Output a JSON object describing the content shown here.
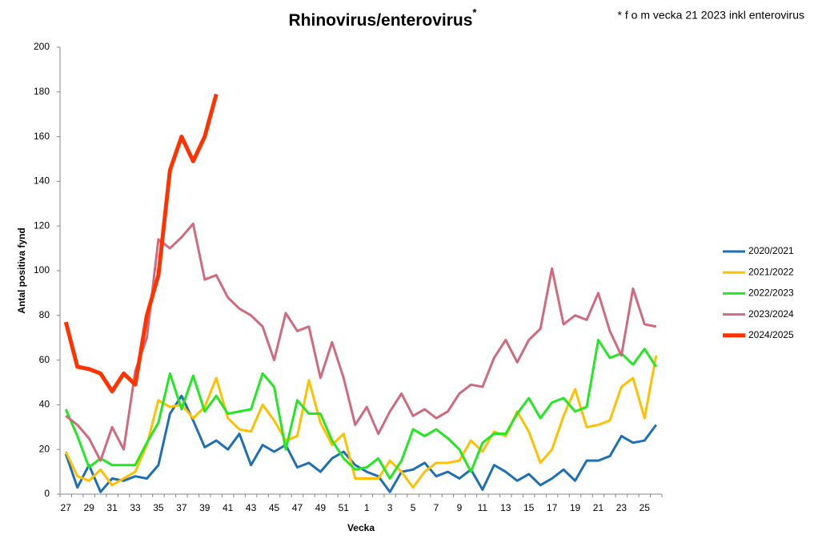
{
  "chart_data": {
    "type": "line",
    "title": "Rhinovirus/enterovirus",
    "title_superscript": "*",
    "annotation": "* f o m vecka 21 2023 inkl enterovirus",
    "x_label": "Vecka",
    "y_label": "Antal positiva fynd",
    "categories": [
      "27",
      null,
      "29",
      null,
      "31",
      null,
      "33",
      null,
      "35",
      null,
      "37",
      null,
      "39",
      null,
      "41",
      null,
      "43",
      null,
      "45",
      null,
      "47",
      null,
      "49",
      null,
      "51",
      null,
      "1",
      null,
      "3",
      null,
      "5",
      null,
      "7",
      null,
      "9",
      null,
      "11",
      null,
      "13",
      null,
      "15",
      null,
      "17",
      null,
      "19",
      null,
      "21",
      null,
      "23",
      null,
      "25",
      null
    ],
    "ylim": [
      0,
      200
    ],
    "yticks": [
      0,
      20,
      40,
      60,
      80,
      100,
      120,
      140,
      160,
      180,
      200
    ],
    "grid": false,
    "legend": "right",
    "series": [
      {
        "name": "2020/2021",
        "color": "#1f6fb4",
        "values": [
          18,
          3,
          13,
          1,
          7,
          6,
          8,
          7,
          13,
          36,
          44,
          33,
          21,
          24,
          20,
          27,
          13,
          22,
          19,
          22,
          12,
          14,
          10,
          16,
          19,
          13,
          10,
          8,
          1,
          10,
          11,
          14,
          8,
          10,
          7,
          11,
          2,
          13,
          10,
          6,
          9,
          4,
          7,
          11,
          6,
          15,
          15,
          17,
          26,
          23,
          24,
          31
        ]
      },
      {
        "name": "2021/2022",
        "color": "#ffc000",
        "values": [
          19,
          8,
          6,
          11,
          4,
          7,
          10,
          22,
          42,
          39,
          40,
          34,
          39,
          52,
          34,
          29,
          28,
          40,
          33,
          24,
          26,
          51,
          32,
          22,
          27,
          7,
          7,
          7,
          15,
          10,
          3,
          10,
          14,
          14,
          15,
          24,
          19,
          28,
          26,
          37,
          28,
          14,
          20,
          35,
          47,
          30,
          31,
          33,
          48,
          52,
          34,
          62
        ]
      },
      {
        "name": "2022/2023",
        "color": "#22e822",
        "values": [
          38,
          26,
          12,
          16,
          13,
          13,
          13,
          23,
          32,
          54,
          38,
          53,
          37,
          44,
          36,
          37,
          38,
          54,
          48,
          20,
          42,
          36,
          36,
          24,
          16,
          11,
          12,
          16,
          7,
          15,
          29,
          26,
          29,
          25,
          20,
          10,
          23,
          27,
          27,
          36,
          43,
          34,
          41,
          43,
          37,
          39,
          69,
          61,
          63,
          58,
          65,
          57
        ]
      },
      {
        "name": "2023/2024",
        "color": "#d06a7e",
        "values": [
          35,
          31,
          25,
          15,
          30,
          20,
          55,
          70,
          114,
          110,
          115,
          121,
          96,
          98,
          88,
          83,
          80,
          75,
          60,
          81,
          73,
          75,
          52,
          68,
          52,
          31,
          39,
          27,
          37,
          45,
          35,
          38,
          34,
          37,
          45,
          49,
          48,
          61,
          69,
          59,
          69,
          74,
          101,
          76,
          80,
          78,
          90,
          73,
          62,
          92,
          76,
          75
        ]
      },
      {
        "name": "2024/2025",
        "color": "#ff3300",
        "values": [
          77,
          57,
          56,
          54,
          46,
          54,
          49,
          80,
          98,
          145,
          160,
          149,
          160,
          179,
          null,
          null,
          null,
          null,
          null,
          null,
          null,
          null,
          null,
          null,
          null,
          null,
          null,
          null,
          null,
          null,
          null,
          null,
          null,
          null,
          null,
          null,
          null,
          null,
          null,
          null,
          null,
          null,
          null,
          null,
          null,
          null,
          null,
          null,
          null,
          null,
          null,
          null
        ]
      }
    ]
  }
}
